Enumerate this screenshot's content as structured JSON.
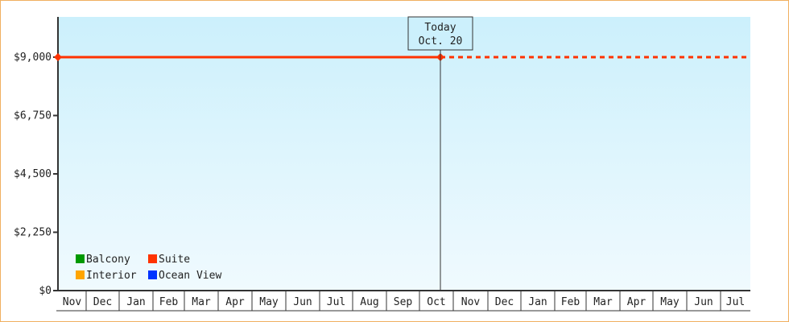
{
  "chart_data": {
    "type": "line",
    "ylim": [
      0,
      10552
    ],
    "yticks": [
      0,
      2250,
      4500,
      6750,
      9000
    ],
    "ytick_labels": [
      "$0",
      "$2,250",
      "$4,500",
      "$6,750",
      "$9,000"
    ],
    "x_months": [
      "Nov",
      "Dec",
      "Jan",
      "Feb",
      "Mar",
      "Apr",
      "May",
      "Jun",
      "Jul",
      "Aug",
      "Sep",
      "Oct",
      "Nov",
      "Dec",
      "Jan",
      "Feb",
      "Mar",
      "Apr",
      "May",
      "Jun",
      "Jul"
    ],
    "today": {
      "label": "Today",
      "date": "Oct. 20"
    },
    "series": [
      {
        "name": "Balcony",
        "color": "#009900",
        "values": []
      },
      {
        "name": "Suite",
        "color": "#ff3300",
        "values": [
          {
            "x": "start",
            "y": 9000
          },
          {
            "x": "Oct. 20",
            "y": 9000
          }
        ],
        "projection": {
          "y": 9000,
          "style": "dashed"
        }
      },
      {
        "name": "Interior",
        "color": "#ffa500",
        "values": []
      },
      {
        "name": "Ocean View",
        "color": "#0033ff",
        "values": []
      }
    ],
    "legend": "bottom-left",
    "background_gradient": [
      "#ccf0fc",
      "#f0fafe"
    ]
  }
}
